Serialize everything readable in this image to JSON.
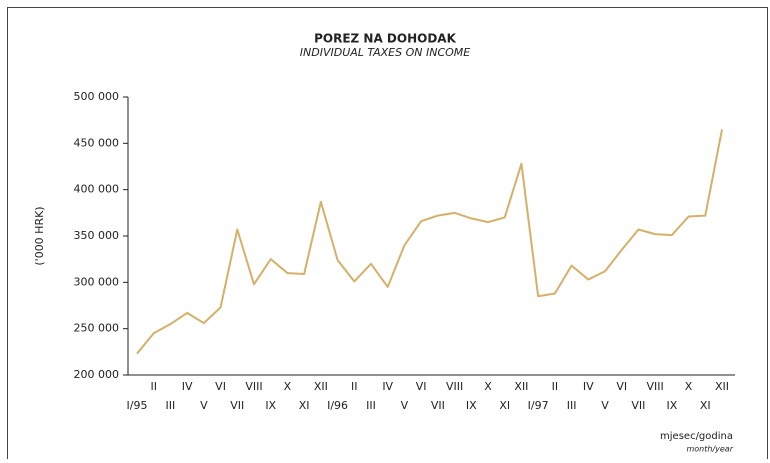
{
  "chart_data": {
    "type": "line",
    "title": "POREZ NA DOHODAK",
    "subtitle": "INDIVIDUAL TAXES ON INCOME",
    "y_label": "('000 HRK)",
    "x_label": "mjesec/godina",
    "x_label_en": "month/year",
    "categories": [
      "I/95",
      "II",
      "III",
      "IV",
      "V",
      "VI",
      "VII",
      "VIII",
      "IX",
      "X",
      "XI",
      "XII",
      "I/96",
      "II",
      "III",
      "IV",
      "V",
      "VI",
      "VII",
      "VIII",
      "IX",
      "X",
      "XI",
      "XII",
      "I/97",
      "II",
      "III",
      "IV",
      "V",
      "VI",
      "VII",
      "VIII",
      "IX",
      "X",
      "XI",
      "XII"
    ],
    "series": [
      {
        "name": "Individual taxes on income",
        "color": "#d4b06a",
        "values": [
          223000,
          245000,
          255000,
          267000,
          256000,
          273000,
          357000,
          298000,
          325000,
          310000,
          309000,
          387000,
          324000,
          301000,
          320000,
          295000,
          340000,
          366000,
          372000,
          375000,
          369000,
          365000,
          370000,
          428000,
          285000,
          288000,
          318000,
          303000,
          312000,
          335000,
          357000,
          352000,
          351000,
          371000,
          372000,
          465000
        ]
      }
    ],
    "ylim": [
      200000,
      500000
    ],
    "yticks": [
      {
        "value": 200000,
        "label": "200 000"
      },
      {
        "value": 250000,
        "label": "250 000"
      },
      {
        "value": 300000,
        "label": "300 000"
      },
      {
        "value": 350000,
        "label": "350 000"
      },
      {
        "value": 400000,
        "label": "400 000"
      },
      {
        "value": 450000,
        "label": "450 000"
      },
      {
        "value": 500000,
        "label": "500 000"
      }
    ]
  }
}
